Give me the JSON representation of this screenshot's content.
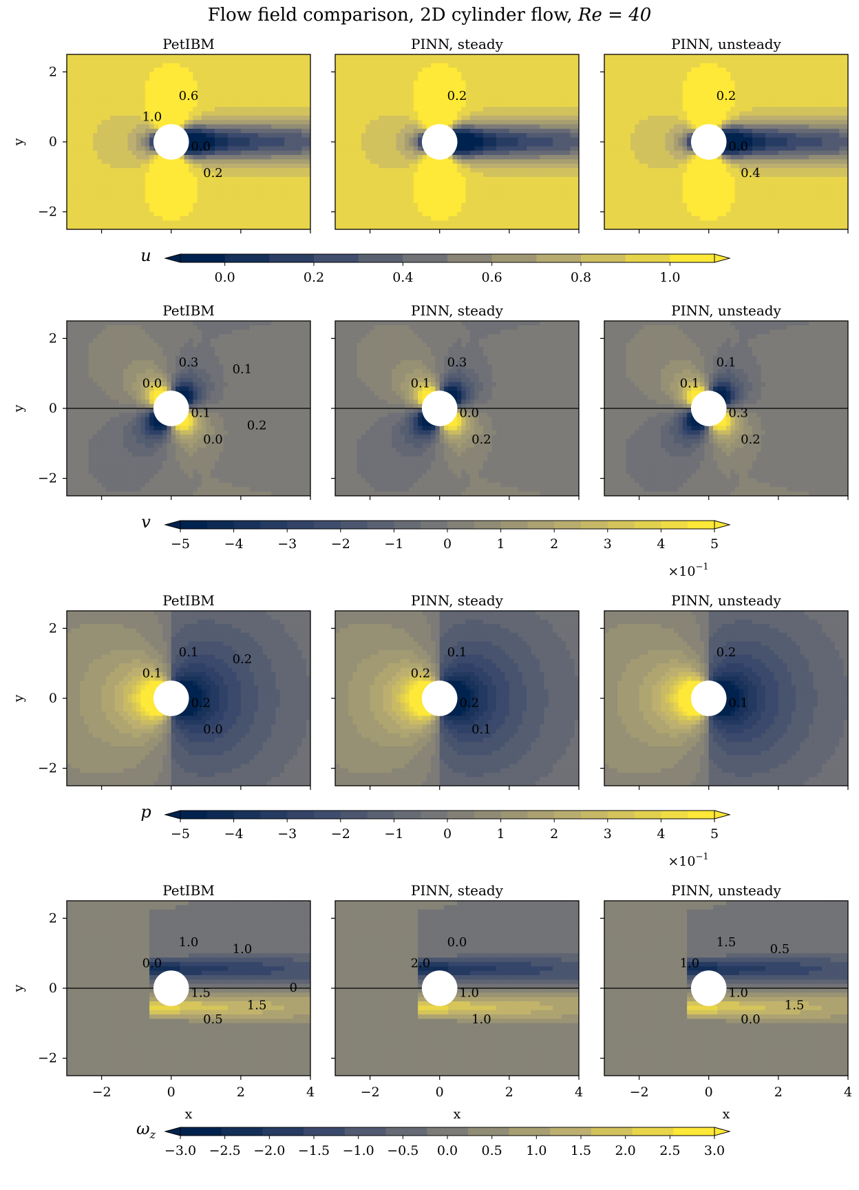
{
  "figure": {
    "title": "Flow field comparison, 2D cylinder flow, ",
    "title_math": "Re = 40"
  },
  "panel_titles": [
    "PetIBM",
    "PINN, steady",
    "PINN, unsteady"
  ],
  "axes": {
    "x_label": "x",
    "y_label": "y",
    "x_ticks": [
      "−2",
      "0",
      "2",
      "4"
    ],
    "y_ticks": [
      "2",
      "0",
      "−2"
    ]
  },
  "colors": {
    "colormap": "cividis",
    "cmap_low": "#00224e",
    "cmap_mid": "#7c7b78",
    "cmap_high": "#fee838",
    "obstacle": "#ffffff"
  },
  "chart_data": [
    {
      "type": "heatmap",
      "field": "u",
      "label": "u",
      "xlim": [
        -3,
        4
      ],
      "ylim": [
        -2.5,
        2.5
      ],
      "levels": [
        -0.1,
        0.0,
        0.1,
        0.2,
        0.3,
        0.4,
        0.5,
        0.6,
        0.7,
        0.8,
        0.9,
        1.0,
        1.1
      ],
      "colorbar_ticks": [
        "0.0",
        "0.2",
        "0.4",
        "0.6",
        "0.8",
        "1.0"
      ],
      "colorbar_multiplier": "",
      "contour_labels": [
        {
          "panel": "PetIBM",
          "labels": [
            "0.6",
            "0.0",
            "0.2",
            "1.0"
          ]
        },
        {
          "panel": "PINN, steady",
          "labels": [
            "0.2"
          ]
        },
        {
          "panel": "PINN, unsteady",
          "labels": [
            "0.2",
            "0.0",
            "0.4"
          ]
        }
      ]
    },
    {
      "type": "heatmap",
      "field": "v",
      "label": "v",
      "xlim": [
        -3,
        4
      ],
      "ylim": [
        -2.5,
        2.5
      ],
      "levels": [
        -5,
        -4.5,
        -4,
        -3.5,
        -3,
        -2.5,
        -2,
        -1.5,
        -1,
        -0.5,
        0,
        0.5,
        1,
        1.5,
        2,
        2.5,
        3,
        3.5,
        4,
        4.5,
        5
      ],
      "colorbar_ticks": [
        "−5",
        "−4",
        "−3",
        "−2",
        "−1",
        "0",
        "1",
        "2",
        "3",
        "4",
        "5"
      ],
      "colorbar_multiplier": "×10",
      "colorbar_exponent": "−1",
      "contour_labels": [
        {
          "panel": "PetIBM",
          "labels": [
            "0.3",
            "0.1",
            "0.0",
            "0.0",
            "0.1",
            "0.2"
          ]
        },
        {
          "panel": "PINN, steady",
          "labels": [
            "0.3",
            "0.0",
            "0.2",
            "0.1"
          ]
        },
        {
          "panel": "PINN, unsteady",
          "labels": [
            "0.1",
            "0.3",
            "0.2",
            "0.1"
          ]
        }
      ]
    },
    {
      "type": "heatmap",
      "field": "p",
      "label": "p",
      "xlim": [
        -3,
        4
      ],
      "ylim": [
        -2.5,
        2.5
      ],
      "levels": [
        -5,
        -4.5,
        -4,
        -3.5,
        -3,
        -2.5,
        -2,
        -1.5,
        -1,
        -0.5,
        0,
        0.5,
        1,
        1.5,
        2,
        2.5,
        3,
        3.5,
        4,
        4.5,
        5
      ],
      "colorbar_ticks": [
        "−5",
        "−4",
        "−3",
        "−2",
        "−1",
        "0",
        "1",
        "2",
        "3",
        "4",
        "5"
      ],
      "colorbar_multiplier": "×10",
      "colorbar_exponent": "−1",
      "contour_labels": [
        {
          "panel": "PetIBM",
          "labels": [
            "0.1",
            "0.2",
            "0.0",
            "0.1",
            "0.2"
          ]
        },
        {
          "panel": "PINN, steady",
          "labels": [
            "0.1",
            "0.2",
            "0.1",
            "0.2"
          ]
        },
        {
          "panel": "PINN, unsteady",
          "labels": [
            "0.2",
            "0.1"
          ]
        }
      ]
    },
    {
      "type": "heatmap",
      "field": "omega_z",
      "label": "ω",
      "label_sub": "z",
      "xlim": [
        -3,
        4
      ],
      "ylim": [
        -2.5,
        2.5
      ],
      "levels": [
        -3.25,
        -2.75,
        -2.25,
        -1.75,
        -1.25,
        -0.75,
        -0.25,
        0.25,
        0.75,
        1.25,
        1.75,
        2.25,
        2.75,
        3.25
      ],
      "colorbar_ticks": [
        "−3.0",
        "−2.5",
        "−2.0",
        "−1.5",
        "−1.0",
        "−0.5",
        "0.0",
        "0.5",
        "1.0",
        "1.5",
        "2.0",
        "2.5",
        "3.0"
      ],
      "colorbar_multiplier": "",
      "contour_labels": [
        {
          "panel": "PetIBM",
          "labels": [
            "1.0",
            "1.5",
            "0.5",
            "0.0",
            "1.0",
            "1.5",
            "0"
          ]
        },
        {
          "panel": "PINN, steady",
          "labels": [
            "0.0",
            "1.0",
            "1.0",
            "2.0"
          ]
        },
        {
          "panel": "PINN, unsteady",
          "labels": [
            "1.5",
            "1.0",
            "0.0",
            "1.0",
            "0.5",
            "1.5"
          ]
        }
      ]
    }
  ]
}
